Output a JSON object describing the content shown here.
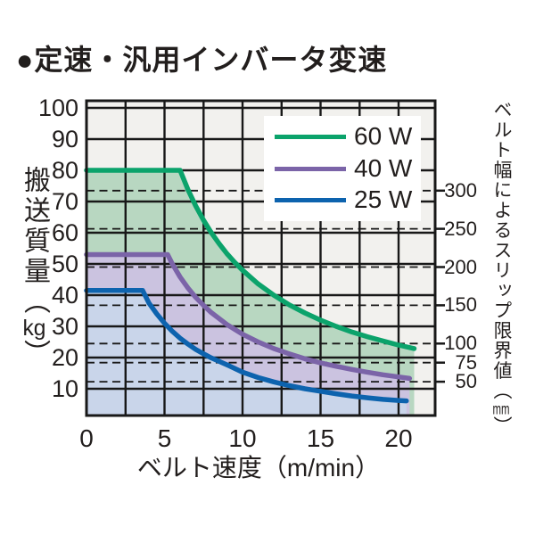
{
  "title": "●定速・汎用インバータ変速",
  "colors": {
    "text": "#221e1d",
    "grid": "#181818",
    "plot_bg": "#f2f1ee",
    "legend_bg": "#ffffff",
    "page_bg": "#ffffff"
  },
  "labels": {
    "y_left": {
      "text": "搬送質量",
      "open": "（",
      "unit": "kg",
      "close": "）"
    },
    "y_right": {
      "text": "ベルト幅によるスリップ限界値",
      "open": "（",
      "unit": "mm",
      "close": "）"
    },
    "x": "ベルト速度（m/min）"
  },
  "chart_data": {
    "type": "line",
    "title": "定速・汎用インバータ変速",
    "xlabel": "ベルト速度（m/min）",
    "ylabel": "搬送質量（kg）",
    "ylabel_right": "ベルト幅によるスリップ限界値（mm）",
    "xlim": [
      0,
      22.3
    ],
    "ylim": [
      0,
      102
    ],
    "x_ticks": [
      0,
      5,
      10,
      15,
      20
    ],
    "x_minor_grid_step": 2.5,
    "y_ticks": [
      10,
      20,
      30,
      40,
      50,
      60,
      70,
      80,
      90,
      100
    ],
    "right_axis": {
      "values": [
        300,
        250,
        200,
        150,
        100,
        75,
        50
      ],
      "kg_per_mm": 0.245,
      "style": "dashed-gridlines-with-ticks"
    },
    "grid": true,
    "legend_position": "top-right-inside",
    "series": [
      {
        "name": "60 W",
        "color": "#0ba36b",
        "fill": "#b8d7c1",
        "points": [
          [
            0,
            80
          ],
          [
            6,
            80
          ],
          [
            6.5,
            73.8
          ],
          [
            7,
            68.6
          ],
          [
            7.5,
            64
          ],
          [
            8,
            60
          ],
          [
            8.5,
            56.5
          ],
          [
            9,
            53.3
          ],
          [
            9.5,
            50.5
          ],
          [
            10,
            48
          ],
          [
            11,
            43.6
          ],
          [
            12,
            40
          ],
          [
            13,
            36.9
          ],
          [
            14,
            34.3
          ],
          [
            15,
            32
          ],
          [
            16,
            30
          ],
          [
            17,
            28.2
          ],
          [
            18,
            26.7
          ],
          [
            19,
            25.3
          ],
          [
            20,
            24
          ],
          [
            21,
            22.9
          ]
        ]
      },
      {
        "name": "40 W",
        "color": "#7b64a8",
        "fill": "#cbc3e0",
        "points": [
          [
            0,
            53
          ],
          [
            5.2,
            53
          ],
          [
            5.5,
            50
          ],
          [
            6,
            45.8
          ],
          [
            6.5,
            42.3
          ],
          [
            7,
            39.3
          ],
          [
            7.5,
            36.7
          ],
          [
            8,
            34.4
          ],
          [
            9,
            30.6
          ],
          [
            10,
            27.5
          ],
          [
            11,
            25
          ],
          [
            12,
            22.9
          ],
          [
            13,
            21.2
          ],
          [
            14,
            19.6
          ],
          [
            15,
            18.3
          ],
          [
            16,
            17.2
          ],
          [
            17,
            16.2
          ],
          [
            18,
            15.3
          ],
          [
            19,
            14.5
          ],
          [
            20,
            13.8
          ],
          [
            20.7,
            13.3
          ]
        ]
      },
      {
        "name": "25 W",
        "color": "#0d63ae",
        "fill": "#c9d5ea",
        "points": [
          [
            0,
            41.5
          ],
          [
            3.6,
            41.5
          ],
          [
            4,
            37.5
          ],
          [
            4.5,
            34
          ],
          [
            5,
            31
          ],
          [
            5.5,
            28.4
          ],
          [
            6,
            26.2
          ],
          [
            6.5,
            24.3
          ],
          [
            7,
            22.6
          ],
          [
            7.5,
            21.2
          ],
          [
            8,
            19.9
          ],
          [
            9,
            17.7
          ],
          [
            10,
            15.3
          ],
          [
            11,
            13.6
          ],
          [
            12,
            12.2
          ],
          [
            13,
            11
          ],
          [
            14,
            10
          ],
          [
            15,
            9.2
          ],
          [
            16,
            8.4
          ],
          [
            17,
            7.7
          ],
          [
            18,
            7.1
          ],
          [
            19,
            6.6
          ],
          [
            20,
            6.25
          ],
          [
            20.5,
            6.1
          ]
        ]
      }
    ]
  }
}
